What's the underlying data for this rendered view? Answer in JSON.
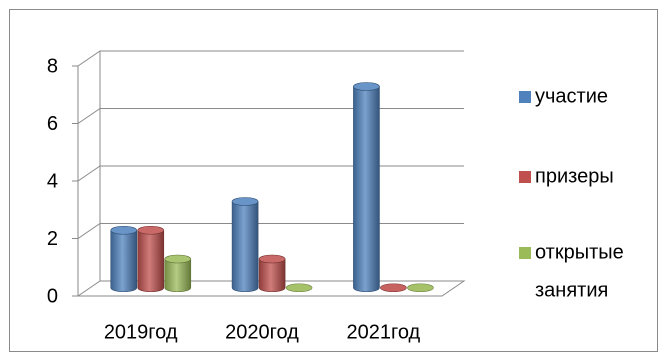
{
  "chart_data": {
    "type": "bar",
    "three_d": true,
    "bar_shape": "cylinder",
    "title": "",
    "xlabel": "",
    "ylabel": "",
    "categories": [
      "2019год",
      "2020год",
      "2021год"
    ],
    "ylim": [
      0,
      8
    ],
    "yticks": [
      0,
      2,
      4,
      6,
      8
    ],
    "grid": true,
    "legend_position": "right",
    "series": [
      {
        "name": "участие",
        "values": [
          2,
          3,
          7
        ],
        "color": "#4f81bd"
      },
      {
        "name": "призеры",
        "values": [
          2,
          1,
          0
        ],
        "color": "#c0504d"
      },
      {
        "name": "открытые занятия",
        "legend_lines": [
          "открытые",
          "занятия"
        ],
        "values": [
          1,
          0,
          0
        ],
        "color": "#9bbb59"
      }
    ]
  }
}
